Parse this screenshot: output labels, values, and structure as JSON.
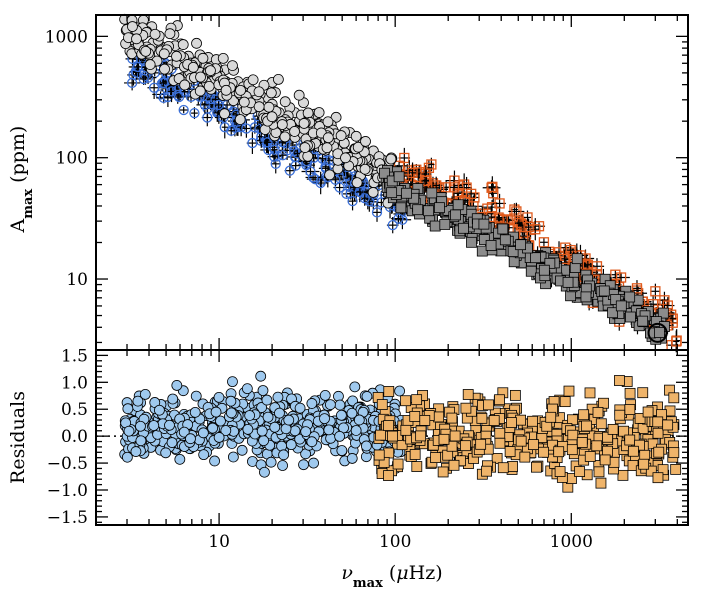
{
  "chart_data": [
    {
      "type": "scatter",
      "panel": "top",
      "xscale": "log",
      "yscale": "log",
      "xlim": [
        2,
        4600
      ],
      "ylim": [
        2.6,
        1500
      ],
      "xticks": [
        10,
        100,
        1000
      ],
      "xtick_labels": [
        "",
        "",
        ""
      ],
      "yticks": [
        10,
        100,
        1000
      ],
      "ytick_labels": [
        "10",
        "100",
        "1000"
      ],
      "ylabel": "A",
      "ylabel_sub": "max",
      "ylabel_unit": "(ppm)",
      "colors": {
        "light_circle_fill": "#d9d9d9",
        "blue_errorbar": "#3a6fd8",
        "dark_square_fill": "#8c8c8c",
        "orange_errorbar": "#e05a1c",
        "errorbar_cross": "#000000",
        "highlight_ring": "#000000"
      },
      "series": [
        {
          "marker": "circle",
          "style": "light grey circles",
          "trend_points": [
            {
              "x": 3,
              "y": 1100
            },
            {
              "x": 5,
              "y": 760
            },
            {
              "x": 10,
              "y": 430
            },
            {
              "x": 20,
              "y": 250
            },
            {
              "x": 40,
              "y": 145
            },
            {
              "x": 80,
              "y": 85
            },
            {
              "x": 100,
              "y": 72
            }
          ],
          "x_range": [
            2.9,
            100
          ],
          "scatter_dex": 0.1
        },
        {
          "marker": "circle-errorbar",
          "style": "blue open circles with black crosses",
          "trend_points": [
            {
              "x": 3.5,
              "y": 550
            },
            {
              "x": 10,
              "y": 250
            },
            {
              "x": 30,
              "y": 105
            },
            {
              "x": 60,
              "y": 62
            },
            {
              "x": 110,
              "y": 38
            }
          ],
          "x_range": [
            3.2,
            120
          ],
          "scatter_dex": 0.08
        },
        {
          "marker": "square",
          "style": "dark grey squares",
          "trend_points": [
            {
              "x": 90,
              "y": 60
            },
            {
              "x": 200,
              "y": 33
            },
            {
              "x": 500,
              "y": 17
            },
            {
              "x": 1000,
              "y": 10
            },
            {
              "x": 2000,
              "y": 6
            },
            {
              "x": 3000,
              "y": 4
            }
          ],
          "x_range": [
            85,
            3500
          ],
          "scatter_dex": 0.07
        },
        {
          "marker": "square-errorbar",
          "style": "orange open squares with black crosses",
          "trend_points": [
            {
              "x": 100,
              "y": 70
            },
            {
              "x": 300,
              "y": 38
            },
            {
              "x": 1000,
              "y": 13
            },
            {
              "x": 2000,
              "y": 7
            },
            {
              "x": 3500,
              "y": 4.5
            }
          ],
          "x_range": [
            100,
            4000
          ],
          "scatter_dex": 0.09
        }
      ],
      "highlight": {
        "x": 3090,
        "y": 3.6,
        "marker": "open circle"
      }
    },
    {
      "type": "scatter",
      "panel": "bottom",
      "xscale": "log",
      "xlim": [
        2,
        4600
      ],
      "ylim": [
        -1.65,
        1.6
      ],
      "xticks": [
        10,
        100,
        1000
      ],
      "xtick_labels": [
        "10",
        "100",
        "1000"
      ],
      "yticks": [
        -1.5,
        -1.0,
        -0.5,
        0.0,
        0.5,
        1.0,
        1.5
      ],
      "ytick_labels": [
        "−1.5",
        "−1.0",
        "−0.5",
        "0.0",
        "0.5",
        "1.0",
        "1.5"
      ],
      "ylabel": "Residuals",
      "xlabel_symbol": "ν",
      "xlabel_sub": "max",
      "xlabel_unit_open": "(",
      "xlabel_mu": "μ",
      "xlabel_unit_rest": "Hz)",
      "reference_line": {
        "y": 0.0,
        "style": "dotted"
      },
      "colors": {
        "circle_fill": "#9fc9ee",
        "square_fill": "#efb46a"
      },
      "series": [
        {
          "marker": "circle",
          "x_range": [
            2.9,
            110
          ],
          "center": 0.2,
          "spread": 0.3,
          "y_range": [
            -0.8,
            1.2
          ]
        },
        {
          "marker": "square",
          "x_range": [
            80,
            4000
          ],
          "center": 0.0,
          "spread": 0.38,
          "y_range": [
            -0.95,
            1.2
          ]
        }
      ]
    }
  ]
}
